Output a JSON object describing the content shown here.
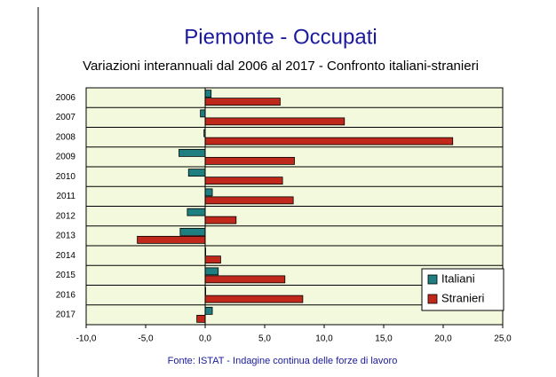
{
  "chart_data": {
    "type": "hbar",
    "title": "Piemonte - Occupati",
    "subtitle": "Variazioni interannuali dal 2006 al 2017 - Confronto italiani-stranieri",
    "source": "Fonte:  ISTAT - Indagine continua delle forze di lavoro",
    "categories": [
      "2006",
      "2007",
      "2008",
      "2009",
      "2010",
      "2011",
      "2012",
      "2013",
      "2014",
      "2015",
      "2016",
      "2017"
    ],
    "series": [
      {
        "name": "Italiani",
        "color": "#1f7f80",
        "values": [
          0.5,
          -0.4,
          -0.1,
          -2.2,
          -1.4,
          0.6,
          -1.5,
          -2.1,
          0.0,
          1.1,
          0.0,
          0.6
        ]
      },
      {
        "name": "Stranieri",
        "color": "#c0281c",
        "values": [
          6.3,
          11.7,
          20.8,
          7.5,
          6.5,
          7.4,
          2.6,
          -5.7,
          1.3,
          6.7,
          8.2,
          -0.7
        ]
      }
    ],
    "xlim": [
      -10,
      25
    ],
    "xticks": [
      {
        "value": -10,
        "label": "-10,0"
      },
      {
        "value": -5,
        "label": "-5,0"
      },
      {
        "value": 0,
        "label": "0,0"
      },
      {
        "value": 5,
        "label": "5,0"
      },
      {
        "value": 10,
        "label": "10,0"
      },
      {
        "value": 15,
        "label": "15,0"
      },
      {
        "value": 20,
        "label": "20,0"
      },
      {
        "value": 25,
        "label": "25,0"
      }
    ],
    "legend": "lower right"
  }
}
